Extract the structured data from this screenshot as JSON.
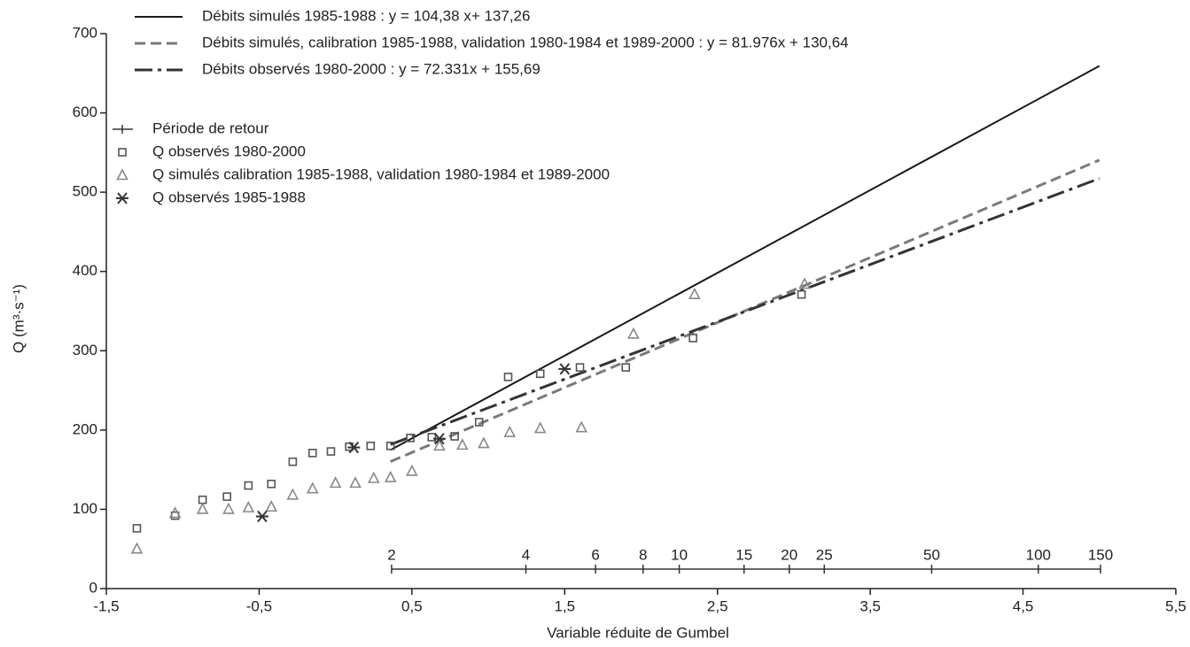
{
  "chart_data": {
    "type": "line",
    "x_label": "Variable réduite de Gumbel",
    "y_label": "Q (m³·s⁻¹)",
    "xlim": [
      -1.5,
      5.5
    ],
    "ylim": [
      0,
      700
    ],
    "xticks": [
      {
        "value": -1.5,
        "label": "-1,5"
      },
      {
        "value": -0.5,
        "label": "-0,5"
      },
      {
        "value": 0.5,
        "label": "0,5"
      },
      {
        "value": 1.5,
        "label": "1,5"
      },
      {
        "value": 2.5,
        "label": "2,5"
      },
      {
        "value": 3.5,
        "label": "3,5"
      },
      {
        "value": 4.5,
        "label": "4,5"
      },
      {
        "value": 5.5,
        "label": "5,5"
      }
    ],
    "yticks": [
      0,
      100,
      200,
      300,
      400,
      500,
      600,
      700
    ],
    "series": [
      {
        "name": "Débits simulés 1985-1988 : y = 104,38 x+ 137,26",
        "type": "line",
        "color": "#1a1a1a",
        "dash": "solid",
        "x": [
          0.36,
          5.0
        ],
        "values": [
          174.8,
          659.2
        ]
      },
      {
        "name": "Débits simulés, calibration 1985-1988, validation 1980-1984 et 1989-2000 : y = 81.976x + 130,64",
        "type": "line",
        "color": "#7a7a7a",
        "dash": "dashed",
        "x": [
          0.36,
          5.0
        ],
        "values": [
          160.2,
          540.5
        ]
      },
      {
        "name": "Débits observés 1980-2000 : y = 72.331x + 155,69",
        "type": "line",
        "color": "#333333",
        "dash": "dashdot",
        "x": [
          0.36,
          5.0
        ],
        "values": [
          181.7,
          517.3
        ]
      },
      {
        "name": "Q observés 1980-2000",
        "type": "scatter",
        "marker": "square",
        "color": "#555555",
        "x": [
          -1.3,
          -1.05,
          -0.87,
          -0.71,
          -0.57,
          -0.42,
          -0.28,
          -0.15,
          -0.03,
          0.09,
          0.23,
          0.36,
          0.49,
          0.63,
          0.78,
          0.94,
          1.13,
          1.34,
          1.6,
          1.9,
          2.34,
          3.05
        ],
        "values": [
          76,
          92,
          112,
          116,
          130,
          132,
          160,
          171,
          173,
          179,
          180,
          180,
          190,
          191,
          192,
          210,
          267,
          271,
          279,
          279,
          316,
          371
        ]
      },
      {
        "name": "Q simulés calibration 1985-1988, validation 1980-1984 et 1989-2000",
        "type": "scatter",
        "marker": "triangle",
        "color": "#888888",
        "x": [
          -1.3,
          -1.05,
          -0.87,
          -0.7,
          -0.57,
          -0.42,
          -0.28,
          -0.15,
          0.0,
          0.13,
          0.25,
          0.36,
          0.5,
          0.68,
          0.83,
          0.97,
          1.14,
          1.34,
          1.61,
          1.95,
          2.35,
          3.07
        ],
        "values": [
          50,
          95,
          100,
          100,
          102,
          103,
          118,
          126,
          133,
          133,
          139,
          140,
          148,
          180,
          181,
          183,
          197,
          202,
          203,
          321,
          371,
          384
        ]
      },
      {
        "name": "Q observés 1985-1988",
        "type": "scatter",
        "marker": "asterisk",
        "color": "#333333",
        "x": [
          -0.48,
          0.12,
          0.68,
          1.5
        ],
        "values": [
          91,
          178,
          189,
          277
        ]
      }
    ],
    "return_period": {
      "name": "Période de retour",
      "labels": [
        2,
        4,
        6,
        8,
        10,
        15,
        20,
        25,
        50,
        100,
        150
      ],
      "x": [
        0.367,
        1.246,
        1.702,
        2.013,
        2.25,
        2.674,
        2.97,
        3.199,
        3.902,
        4.6,
        5.007
      ]
    }
  }
}
